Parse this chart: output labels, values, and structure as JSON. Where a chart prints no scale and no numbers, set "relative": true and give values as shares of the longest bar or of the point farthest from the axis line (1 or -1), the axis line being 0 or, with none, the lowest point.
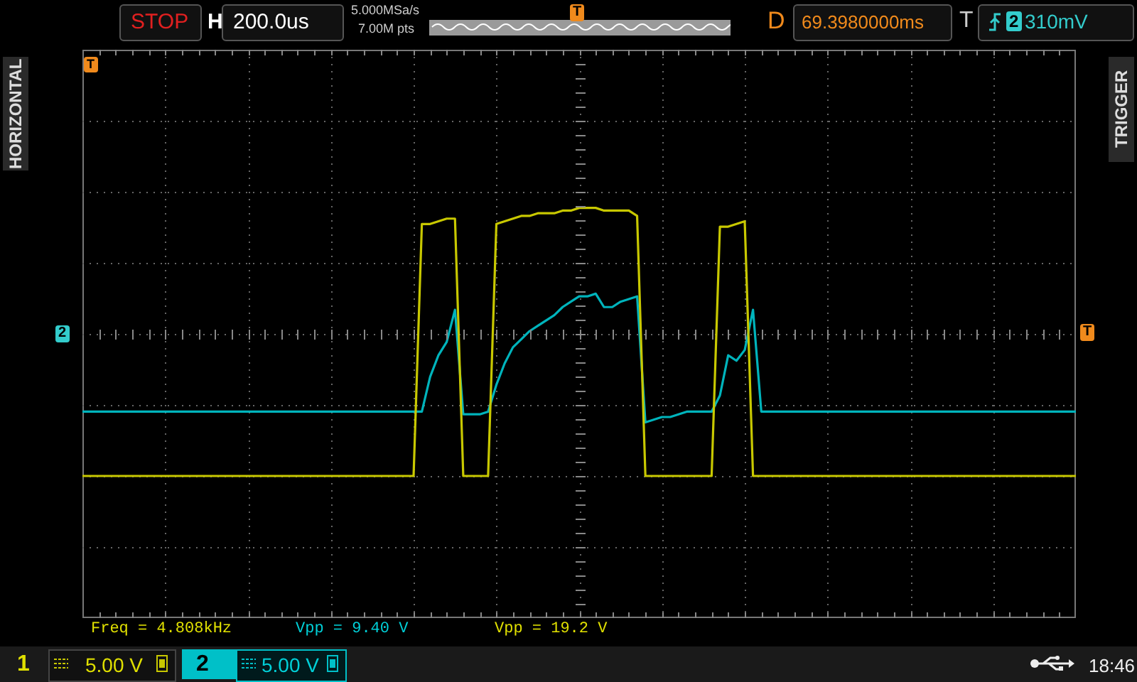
{
  "chart_data": {
    "type": "line",
    "relative": true,
    "grid": true,
    "categories": [
      null,
      null,
      null,
      null,
      null,
      null,
      null,
      null,
      null,
      null,
      null,
      null,
      null,
      null,
      null,
      null,
      null,
      null,
      null,
      null,
      null,
      null,
      null,
      null,
      null,
      null,
      null,
      null,
      null,
      null,
      null,
      null,
      null,
      null,
      null,
      null,
      null,
      null,
      null,
      null,
      null,
      null,
      null,
      null,
      null,
      null,
      null,
      null,
      null,
      null,
      null,
      null,
      null,
      null,
      null,
      null,
      null,
      null,
      null,
      null,
      null,
      null,
      null,
      null,
      null,
      null,
      null,
      null,
      null,
      null,
      null,
      null,
      null,
      null,
      null,
      null,
      null,
      null,
      null,
      null,
      null,
      null,
      null,
      null,
      null,
      null,
      null,
      null,
      null,
      null,
      null,
      null,
      null,
      null,
      null,
      null,
      null,
      null,
      null,
      null,
      null,
      null,
      null,
      null,
      null,
      null,
      null,
      null,
      null,
      null,
      null,
      null,
      null,
      null,
      null,
      null,
      null,
      null,
      null,
      null,
      null
    ],
    "series": [
      {
        "color": "#c8c800",
        "values": [
          0,
          0,
          0,
          0,
          0,
          0,
          0,
          0,
          0,
          0,
          0,
          0,
          0,
          0,
          0,
          0,
          0,
          0,
          0,
          0,
          0,
          0,
          0,
          0,
          0,
          0,
          0,
          0,
          0,
          0,
          0,
          0,
          0,
          0,
          0,
          0,
          0,
          0,
          0,
          0,
          0,
          0.94,
          0.94,
          0.95,
          0.96,
          0.96,
          0,
          0,
          0,
          0,
          0.94,
          0.95,
          0.96,
          0.97,
          0.97,
          0.98,
          0.98,
          0.98,
          0.99,
          0.99,
          1,
          1,
          1,
          0.99,
          0.99,
          0.99,
          0.99,
          0.97,
          0,
          0,
          0,
          0,
          0,
          0,
          0,
          0,
          0,
          0.93,
          0.93,
          0.94,
          0.95,
          0,
          0,
          0,
          0,
          0,
          0,
          0,
          0,
          0,
          0,
          0,
          0,
          0,
          0,
          0,
          0,
          0,
          0,
          0,
          0,
          0,
          0,
          0,
          0,
          0,
          0,
          0,
          0,
          0,
          0,
          0,
          0,
          0,
          0,
          0,
          0,
          0,
          0,
          0,
          0
        ]
      },
      {
        "color": "#00b4bc",
        "values": [
          0.24,
          0.24,
          0.24,
          0.24,
          0.24,
          0.24,
          0.24,
          0.24,
          0.24,
          0.24,
          0.24,
          0.24,
          0.24,
          0.24,
          0.24,
          0.24,
          0.24,
          0.24,
          0.24,
          0.24,
          0.24,
          0.24,
          0.24,
          0.24,
          0.24,
          0.24,
          0.24,
          0.24,
          0.24,
          0.24,
          0.24,
          0.24,
          0.24,
          0.24,
          0.24,
          0.24,
          0.24,
          0.24,
          0.24,
          0.24,
          0.24,
          0.24,
          0.37,
          0.45,
          0.5,
          0.62,
          0.23,
          0.23,
          0.23,
          0.24,
          0.34,
          0.42,
          0.48,
          0.51,
          0.54,
          0.56,
          0.58,
          0.6,
          0.63,
          0.65,
          0.67,
          0.67,
          0.68,
          0.63,
          0.63,
          0.65,
          0.66,
          0.67,
          0.2,
          0.21,
          0.22,
          0.22,
          0.23,
          0.24,
          0.24,
          0.24,
          0.24,
          0.3,
          0.45,
          0.43,
          0.47,
          0.62,
          0.24,
          0.24,
          0.24,
          0.24,
          0.24,
          0.24,
          0.24,
          0.24,
          0.24,
          0.24,
          0.24,
          0.24,
          0.24,
          0.24,
          0.24,
          0.24,
          0.24,
          0.24,
          0.24,
          0.24,
          0.24,
          0.24,
          0.24,
          0.24,
          0.24,
          0.24,
          0.24,
          0.24,
          0.24,
          0.24,
          0.24,
          0.24,
          0.24,
          0.24,
          0.24,
          0.24,
          0.24,
          0.24,
          0.24
        ]
      }
    ],
    "annotations": [
      "STOP",
      "H",
      "200.0us",
      "5.000MSa/s",
      "7.00M pts",
      "D",
      "69.3980000ms",
      "T",
      "310mV",
      "HORIZONTAL",
      "TRIGGER",
      "Freq = 4.808kHz",
      "Vpp = 9.40 V",
      "Vpp = 19.2 V",
      "1",
      "5.00 V",
      "2",
      "5.00 V",
      "18:46",
      "2",
      "T",
      "T",
      "2",
      "T"
    ]
  }
}
